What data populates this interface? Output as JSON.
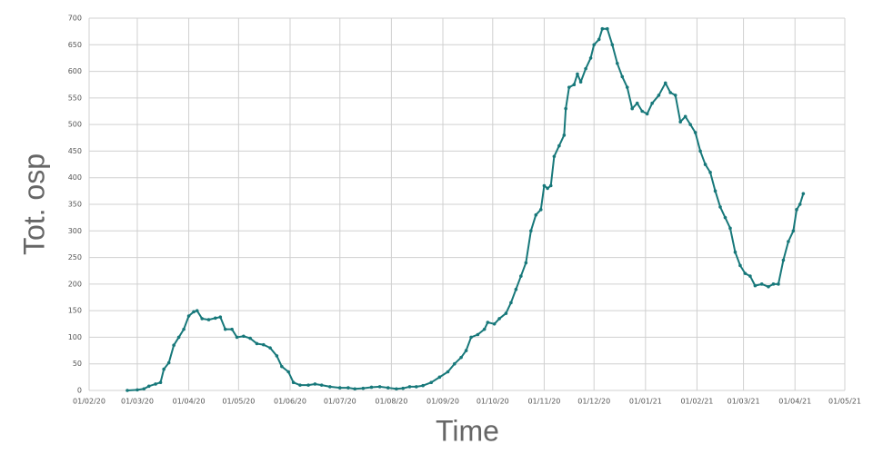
{
  "chart_data": {
    "type": "line",
    "x_label": "Time",
    "y_label": "Tot. osp",
    "color": "#17787a",
    "grid": true,
    "markers": true,
    "xlim": [
      "2020-02-01",
      "2021-05-01"
    ],
    "xticks": [
      {
        "value": "2020-02-01",
        "label": "01/02/20"
      },
      {
        "value": "2020-03-01",
        "label": "01/03/20"
      },
      {
        "value": "2020-04-01",
        "label": "01/04/20"
      },
      {
        "value": "2020-05-01",
        "label": "01/05/20"
      },
      {
        "value": "2020-06-01",
        "label": "01/06/20"
      },
      {
        "value": "2020-07-01",
        "label": "01/07/20"
      },
      {
        "value": "2020-08-01",
        "label": "01/08/20"
      },
      {
        "value": "2020-09-01",
        "label": "01/09/20"
      },
      {
        "value": "2020-10-01",
        "label": "01/10/20"
      },
      {
        "value": "2020-11-01",
        "label": "01/11/20"
      },
      {
        "value": "2020-12-01",
        "label": "01/12/20"
      },
      {
        "value": "2021-01-01",
        "label": "01/01/21"
      },
      {
        "value": "2021-02-01",
        "label": "01/02/21"
      },
      {
        "value": "2021-03-01",
        "label": "01/03/21"
      },
      {
        "value": "2021-04-01",
        "label": "01/04/21"
      },
      {
        "value": "2021-05-01",
        "label": "01/05/21"
      }
    ],
    "ylim": [
      0,
      700
    ],
    "yticks": [
      0,
      50,
      100,
      150,
      200,
      250,
      300,
      350,
      400,
      450,
      500,
      550,
      600,
      650,
      700
    ],
    "x": [
      "2020-02-24",
      "2020-03-01",
      "2020-03-05",
      "2020-03-08",
      "2020-03-12",
      "2020-03-15",
      "2020-03-17",
      "2020-03-20",
      "2020-03-23",
      "2020-03-26",
      "2020-03-29",
      "2020-04-01",
      "2020-04-04",
      "2020-04-06",
      "2020-04-09",
      "2020-04-13",
      "2020-04-17",
      "2020-04-20",
      "2020-04-23",
      "2020-04-27",
      "2020-04-30",
      "2020-05-04",
      "2020-05-08",
      "2020-05-12",
      "2020-05-16",
      "2020-05-20",
      "2020-05-24",
      "2020-05-27",
      "2020-05-31",
      "2020-06-03",
      "2020-06-07",
      "2020-06-12",
      "2020-06-16",
      "2020-06-20",
      "2020-06-25",
      "2020-07-01",
      "2020-07-06",
      "2020-07-10",
      "2020-07-15",
      "2020-07-20",
      "2020-07-25",
      "2020-07-30",
      "2020-08-04",
      "2020-08-08",
      "2020-08-12",
      "2020-08-16",
      "2020-08-20",
      "2020-08-25",
      "2020-08-30",
      "2020-09-04",
      "2020-09-08",
      "2020-09-12",
      "2020-09-15",
      "2020-09-18",
      "2020-09-22",
      "2020-09-26",
      "2020-09-28",
      "2020-10-02",
      "2020-10-05",
      "2020-10-09",
      "2020-10-12",
      "2020-10-15",
      "2020-10-18",
      "2020-10-21",
      "2020-10-24",
      "2020-10-27",
      "2020-10-30",
      "2020-11-01",
      "2020-11-03",
      "2020-11-05",
      "2020-11-07",
      "2020-11-10",
      "2020-11-13",
      "2020-11-14",
      "2020-11-16",
      "2020-11-19",
      "2020-11-21",
      "2020-11-23",
      "2020-11-26",
      "2020-11-29",
      "2020-12-01",
      "2020-12-04",
      "2020-12-06",
      "2020-12-09",
      "2020-12-12",
      "2020-12-15",
      "2020-12-18",
      "2020-12-21",
      "2020-12-24",
      "2020-12-27",
      "2020-12-30",
      "2021-01-02",
      "2021-01-05",
      "2021-01-09",
      "2021-01-13",
      "2021-01-16",
      "2021-01-19",
      "2021-01-22",
      "2021-01-25",
      "2021-01-28",
      "2021-01-31",
      "2021-02-03",
      "2021-02-06",
      "2021-02-09",
      "2021-02-12",
      "2021-02-15",
      "2021-02-18",
      "2021-02-21",
      "2021-02-24",
      "2021-02-27",
      "2021-03-02",
      "2021-03-05",
      "2021-03-08",
      "2021-03-12",
      "2021-03-16",
      "2021-03-19",
      "2021-03-22",
      "2021-03-25",
      "2021-03-28",
      "2021-03-31",
      "2021-04-02",
      "2021-04-04",
      "2021-04-06"
    ],
    "values": [
      0,
      1,
      3,
      8,
      12,
      15,
      40,
      52,
      85,
      100,
      115,
      140,
      148,
      150,
      135,
      133,
      136,
      138,
      115,
      115,
      100,
      102,
      98,
      88,
      86,
      80,
      65,
      45,
      35,
      15,
      10,
      10,
      12,
      10,
      7,
      5,
      5,
      3,
      4,
      6,
      7,
      5,
      3,
      4,
      7,
      7,
      9,
      15,
      25,
      35,
      50,
      62,
      75,
      100,
      105,
      115,
      128,
      125,
      135,
      145,
      165,
      190,
      215,
      240,
      300,
      330,
      340,
      385,
      380,
      385,
      440,
      460,
      480,
      530,
      570,
      575,
      595,
      580,
      605,
      625,
      650,
      660,
      680,
      680,
      650,
      615,
      590,
      570,
      530,
      540,
      525,
      520,
      540,
      555,
      578,
      560,
      555,
      505,
      515,
      500,
      485,
      450,
      425,
      410,
      375,
      345,
      325,
      305,
      260,
      235,
      220,
      215,
      197,
      200,
      195,
      200,
      200,
      245,
      280,
      300,
      340,
      350,
      370
    ]
  }
}
